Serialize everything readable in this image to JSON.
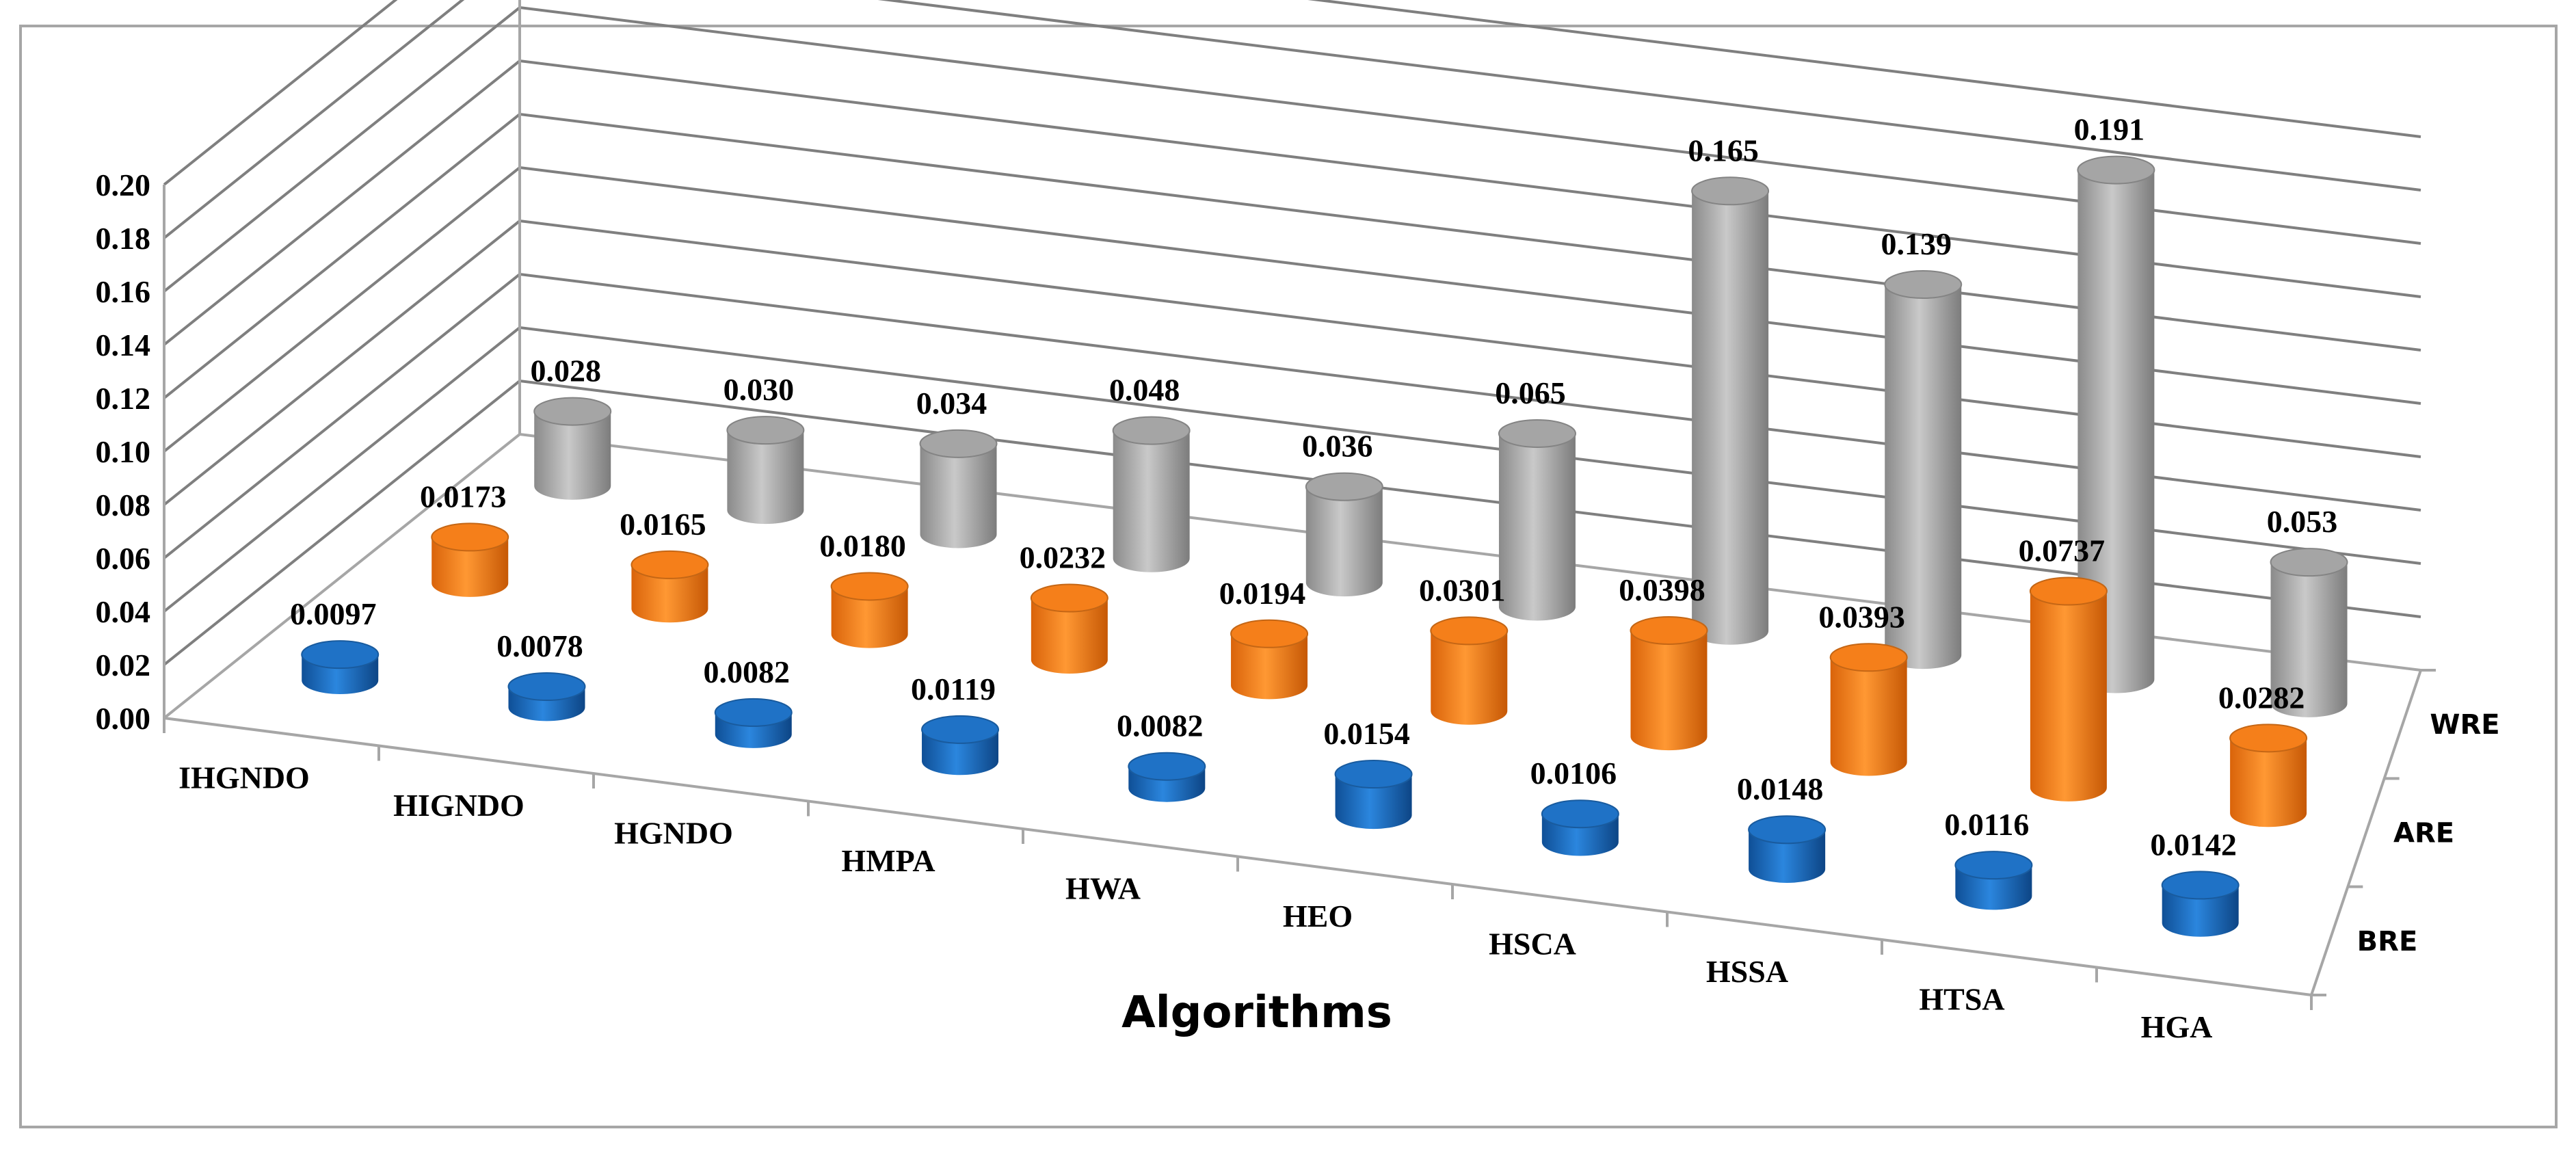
{
  "chart_data": {
    "type": "bar",
    "style": "3d-cylinder",
    "title": "",
    "xlabel": "Algorithms",
    "ylabel": "",
    "ylim": [
      0,
      0.2
    ],
    "yticks": [
      "0.00",
      "0.02",
      "0.04",
      "0.06",
      "0.08",
      "0.10",
      "0.12",
      "0.14",
      "0.16",
      "0.18",
      "0.20"
    ],
    "categories": [
      "IHGNDO",
      "HIGNDO",
      "HGNDO",
      "HMPA",
      "HWA",
      "HEO",
      "HSCA",
      "HSSA",
      "HTSA",
      "HGA"
    ],
    "series": [
      {
        "name": "BRE",
        "color": "#1f72c6",
        "values": [
          0.0097,
          0.0078,
          0.0082,
          0.0119,
          0.0082,
          0.0154,
          0.0106,
          0.0148,
          0.0116,
          0.0142
        ],
        "labels": [
          "0.0097",
          "0.0078",
          "0.0082",
          "0.0119",
          "0.0082",
          "0.0154",
          "0.0106",
          "0.0148",
          "0.0116",
          "0.0142"
        ]
      },
      {
        "name": "ARE",
        "color": "#f57f1a",
        "values": [
          0.0173,
          0.0165,
          0.018,
          0.0232,
          0.0194,
          0.0301,
          0.0398,
          0.0393,
          0.0737,
          0.0282
        ],
        "labels": [
          "0.0173",
          "0.0165",
          "0.0180",
          "0.0232",
          "0.0194",
          "0.0301",
          "0.0398",
          "0.0393",
          "0.0737",
          "0.0282"
        ]
      },
      {
        "name": "WRE",
        "color": "#a5a5a5",
        "values": [
          0.028,
          0.03,
          0.034,
          0.048,
          0.036,
          0.065,
          0.165,
          0.139,
          0.191,
          0.053
        ],
        "labels": [
          "0.028",
          "0.030",
          "0.034",
          "0.048",
          "0.036",
          "0.065",
          "0.165",
          "0.139",
          "0.191",
          "0.053"
        ]
      }
    ],
    "grid": true,
    "legend": "depth-axis-right"
  }
}
